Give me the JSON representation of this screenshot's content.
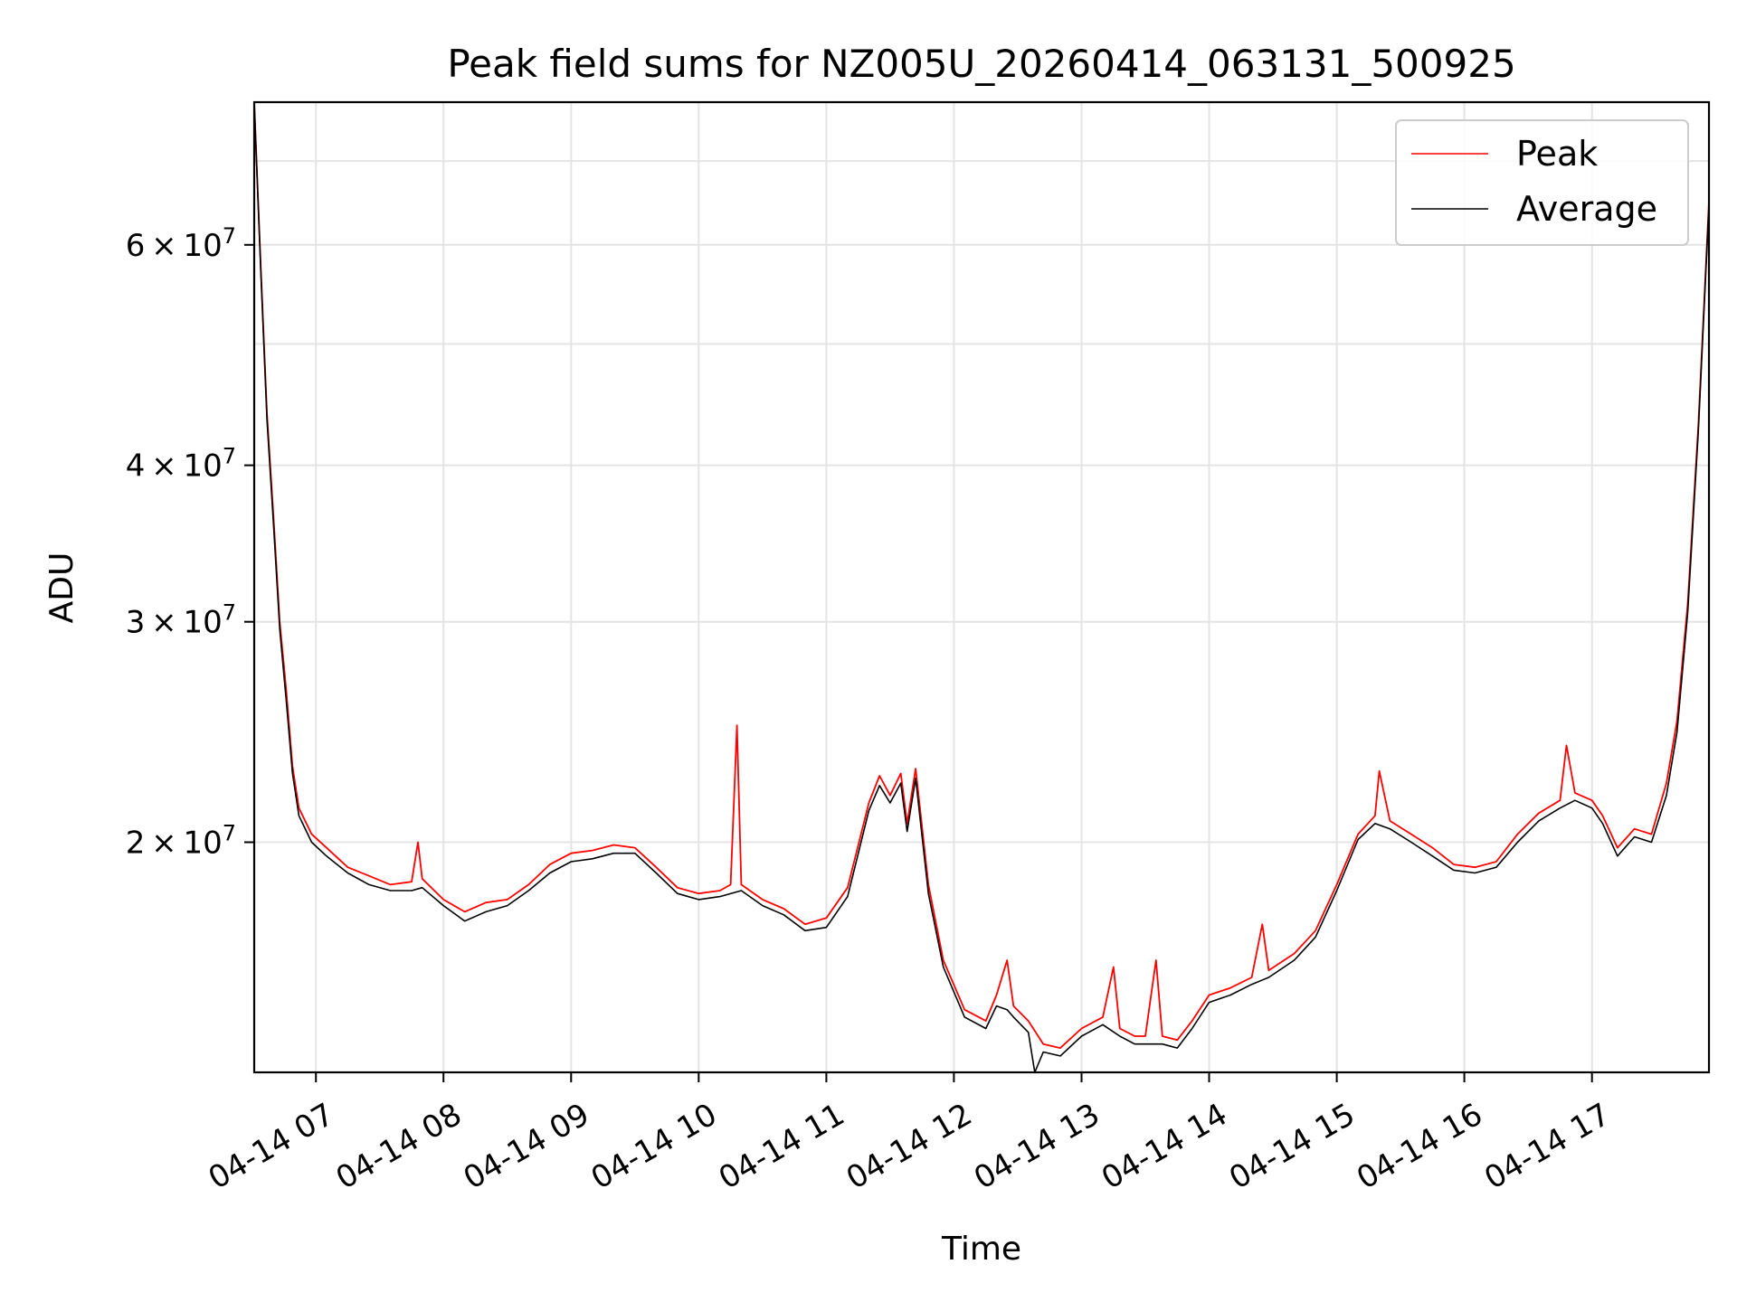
{
  "chart_data": {
    "type": "line",
    "title": "Peak field sums for NZ005U_20260414_063131_500925",
    "xlabel": "Time",
    "ylabel": "ADU",
    "yscale": "log",
    "ylim": [
      13100000,
      78000000
    ],
    "xlim": [
      "2026-04-14 06:31",
      "2026-04-14 17:55"
    ],
    "grid": true,
    "legend_position": "top-right",
    "x_ticks": [
      {
        "t": "2026-04-14 07:00",
        "label": "04-14 07"
      },
      {
        "t": "2026-04-14 08:00",
        "label": "04-14 08"
      },
      {
        "t": "2026-04-14 09:00",
        "label": "04-14 09"
      },
      {
        "t": "2026-04-14 10:00",
        "label": "04-14 10"
      },
      {
        "t": "2026-04-14 11:00",
        "label": "04-14 11"
      },
      {
        "t": "2026-04-14 12:00",
        "label": "04-14 12"
      },
      {
        "t": "2026-04-14 13:00",
        "label": "04-14 13"
      },
      {
        "t": "2026-04-14 14:00",
        "label": "04-14 14"
      },
      {
        "t": "2026-04-14 15:00",
        "label": "04-14 15"
      },
      {
        "t": "2026-04-14 16:00",
        "label": "04-14 16"
      },
      {
        "t": "2026-04-14 17:00",
        "label": "04-14 17"
      }
    ],
    "y_ticks_major": [
      {
        "value": 20000000,
        "mantissa": "2",
        "exponent": "7"
      },
      {
        "value": 30000000,
        "mantissa": "3",
        "exponent": "7"
      },
      {
        "value": 40000000,
        "mantissa": "4",
        "exponent": "7"
      },
      {
        "value": 60000000,
        "mantissa": "6",
        "exponent": "7"
      }
    ],
    "y_gridlines": [
      20000000,
      30000000,
      40000000,
      50000000,
      60000000,
      70000000
    ],
    "series": [
      {
        "name": "Peak",
        "color": "#ff0000",
        "points": [
          [
            "2026-04-14 06:31",
            78000000
          ],
          [
            "2026-04-14 06:34",
            58000000
          ],
          [
            "2026-04-14 06:37",
            44000000
          ],
          [
            "2026-04-14 06:40",
            36500000
          ],
          [
            "2026-04-14 06:43",
            30000000
          ],
          [
            "2026-04-14 06:46",
            26500000
          ],
          [
            "2026-04-14 06:49",
            23000000
          ],
          [
            "2026-04-14 06:52",
            21300000
          ],
          [
            "2026-04-14 06:58",
            20300000
          ],
          [
            "2026-04-14 07:05",
            19800000
          ],
          [
            "2026-04-14 07:15",
            19100000
          ],
          [
            "2026-04-14 07:25",
            18800000
          ],
          [
            "2026-04-14 07:35",
            18500000
          ],
          [
            "2026-04-14 07:45",
            18600000
          ],
          [
            "2026-04-14 07:48",
            20000000
          ],
          [
            "2026-04-14 07:50",
            18700000
          ],
          [
            "2026-04-14 08:00",
            18000000
          ],
          [
            "2026-04-14 08:10",
            17600000
          ],
          [
            "2026-04-14 08:20",
            17900000
          ],
          [
            "2026-04-14 08:30",
            18000000
          ],
          [
            "2026-04-14 08:40",
            18500000
          ],
          [
            "2026-04-14 08:50",
            19200000
          ],
          [
            "2026-04-14 09:00",
            19600000
          ],
          [
            "2026-04-14 09:10",
            19700000
          ],
          [
            "2026-04-14 09:20",
            19900000
          ],
          [
            "2026-04-14 09:30",
            19800000
          ],
          [
            "2026-04-14 09:40",
            19100000
          ],
          [
            "2026-04-14 09:50",
            18400000
          ],
          [
            "2026-04-14 10:00",
            18200000
          ],
          [
            "2026-04-14 10:10",
            18300000
          ],
          [
            "2026-04-14 10:15",
            18500000
          ],
          [
            "2026-04-14 10:18",
            24800000
          ],
          [
            "2026-04-14 10:20",
            18500000
          ],
          [
            "2026-04-14 10:30",
            18000000
          ],
          [
            "2026-04-14 10:40",
            17700000
          ],
          [
            "2026-04-14 10:50",
            17200000
          ],
          [
            "2026-04-14 11:00",
            17400000
          ],
          [
            "2026-04-14 11:10",
            18400000
          ],
          [
            "2026-04-14 11:20",
            21500000
          ],
          [
            "2026-04-14 11:25",
            22600000
          ],
          [
            "2026-04-14 11:30",
            21800000
          ],
          [
            "2026-04-14 11:35",
            22700000
          ],
          [
            "2026-04-14 11:38",
            20700000
          ],
          [
            "2026-04-14 11:42",
            22900000
          ],
          [
            "2026-04-14 11:48",
            18500000
          ],
          [
            "2026-04-14 11:55",
            16100000
          ],
          [
            "2026-04-14 12:05",
            14700000
          ],
          [
            "2026-04-14 12:15",
            14400000
          ],
          [
            "2026-04-14 12:20",
            15100000
          ],
          [
            "2026-04-14 12:25",
            16100000
          ],
          [
            "2026-04-14 12:28",
            14800000
          ],
          [
            "2026-04-14 12:35",
            14400000
          ],
          [
            "2026-04-14 12:42",
            13800000
          ],
          [
            "2026-04-14 12:50",
            13700000
          ],
          [
            "2026-04-14 13:00",
            14200000
          ],
          [
            "2026-04-14 13:10",
            14500000
          ],
          [
            "2026-04-14 13:15",
            15900000
          ],
          [
            "2026-04-14 13:18",
            14200000
          ],
          [
            "2026-04-14 13:25",
            14000000
          ],
          [
            "2026-04-14 13:30",
            14000000
          ],
          [
            "2026-04-14 13:35",
            16100000
          ],
          [
            "2026-04-14 13:38",
            14000000
          ],
          [
            "2026-04-14 13:45",
            13900000
          ],
          [
            "2026-04-14 13:52",
            14400000
          ],
          [
            "2026-04-14 14:00",
            15100000
          ],
          [
            "2026-04-14 14:10",
            15300000
          ],
          [
            "2026-04-14 14:20",
            15600000
          ],
          [
            "2026-04-14 14:25",
            17200000
          ],
          [
            "2026-04-14 14:28",
            15800000
          ],
          [
            "2026-04-14 14:40",
            16300000
          ],
          [
            "2026-04-14 14:50",
            17000000
          ],
          [
            "2026-04-14 15:00",
            18500000
          ],
          [
            "2026-04-14 15:10",
            20300000
          ],
          [
            "2026-04-14 15:18",
            21000000
          ],
          [
            "2026-04-14 15:20",
            22800000
          ],
          [
            "2026-04-14 15:25",
            20800000
          ],
          [
            "2026-04-14 15:35",
            20300000
          ],
          [
            "2026-04-14 15:45",
            19800000
          ],
          [
            "2026-04-14 15:55",
            19200000
          ],
          [
            "2026-04-14 16:05",
            19100000
          ],
          [
            "2026-04-14 16:15",
            19300000
          ],
          [
            "2026-04-14 16:25",
            20300000
          ],
          [
            "2026-04-14 16:35",
            21100000
          ],
          [
            "2026-04-14 16:45",
            21600000
          ],
          [
            "2026-04-14 16:48",
            23900000
          ],
          [
            "2026-04-14 16:52",
            21900000
          ],
          [
            "2026-04-14 17:00",
            21600000
          ],
          [
            "2026-04-14 17:05",
            21000000
          ],
          [
            "2026-04-14 17:12",
            19800000
          ],
          [
            "2026-04-14 17:20",
            20500000
          ],
          [
            "2026-04-14 17:28",
            20300000
          ],
          [
            "2026-04-14 17:35",
            22300000
          ],
          [
            "2026-04-14 17:40",
            25000000
          ],
          [
            "2026-04-14 17:45",
            31000000
          ],
          [
            "2026-04-14 17:50",
            43000000
          ],
          [
            "2026-04-14 17:55",
            65000000
          ]
        ]
      },
      {
        "name": "Average",
        "color": "#000000",
        "points": [
          [
            "2026-04-14 06:31",
            78000000
          ],
          [
            "2026-04-14 06:34",
            57500000
          ],
          [
            "2026-04-14 06:37",
            43500000
          ],
          [
            "2026-04-14 06:40",
            36000000
          ],
          [
            "2026-04-14 06:43",
            29600000
          ],
          [
            "2026-04-14 06:46",
            26000000
          ],
          [
            "2026-04-14 06:49",
            22700000
          ],
          [
            "2026-04-14 06:52",
            21000000
          ],
          [
            "2026-04-14 06:58",
            20000000
          ],
          [
            "2026-04-14 07:05",
            19500000
          ],
          [
            "2026-04-14 07:15",
            18900000
          ],
          [
            "2026-04-14 07:25",
            18500000
          ],
          [
            "2026-04-14 07:35",
            18300000
          ],
          [
            "2026-04-14 07:45",
            18300000
          ],
          [
            "2026-04-14 07:50",
            18400000
          ],
          [
            "2026-04-14 08:00",
            17800000
          ],
          [
            "2026-04-14 08:10",
            17300000
          ],
          [
            "2026-04-14 08:20",
            17600000
          ],
          [
            "2026-04-14 08:30",
            17800000
          ],
          [
            "2026-04-14 08:40",
            18300000
          ],
          [
            "2026-04-14 08:50",
            18900000
          ],
          [
            "2026-04-14 09:00",
            19300000
          ],
          [
            "2026-04-14 09:10",
            19400000
          ],
          [
            "2026-04-14 09:20",
            19600000
          ],
          [
            "2026-04-14 09:30",
            19600000
          ],
          [
            "2026-04-14 09:40",
            18900000
          ],
          [
            "2026-04-14 09:50",
            18200000
          ],
          [
            "2026-04-14 10:00",
            18000000
          ],
          [
            "2026-04-14 10:10",
            18100000
          ],
          [
            "2026-04-14 10:20",
            18300000
          ],
          [
            "2026-04-14 10:30",
            17800000
          ],
          [
            "2026-04-14 10:40",
            17500000
          ],
          [
            "2026-04-14 10:50",
            17000000
          ],
          [
            "2026-04-14 11:00",
            17100000
          ],
          [
            "2026-04-14 11:10",
            18100000
          ],
          [
            "2026-04-14 11:20",
            21200000
          ],
          [
            "2026-04-14 11:25",
            22200000
          ],
          [
            "2026-04-14 11:30",
            21500000
          ],
          [
            "2026-04-14 11:35",
            22300000
          ],
          [
            "2026-04-14 11:38",
            20400000
          ],
          [
            "2026-04-14 11:42",
            22500000
          ],
          [
            "2026-04-14 11:48",
            18200000
          ],
          [
            "2026-04-14 11:55",
            15900000
          ],
          [
            "2026-04-14 12:05",
            14500000
          ],
          [
            "2026-04-14 12:15",
            14200000
          ],
          [
            "2026-04-14 12:20",
            14800000
          ],
          [
            "2026-04-14 12:25",
            14700000
          ],
          [
            "2026-04-14 12:28",
            14500000
          ],
          [
            "2026-04-14 12:35",
            14100000
          ],
          [
            "2026-04-14 12:38",
            13100000
          ],
          [
            "2026-04-14 12:42",
            13600000
          ],
          [
            "2026-04-14 12:50",
            13500000
          ],
          [
            "2026-04-14 13:00",
            14000000
          ],
          [
            "2026-04-14 13:10",
            14300000
          ],
          [
            "2026-04-14 13:18",
            14000000
          ],
          [
            "2026-04-14 13:25",
            13800000
          ],
          [
            "2026-04-14 13:30",
            13800000
          ],
          [
            "2026-04-14 13:38",
            13800000
          ],
          [
            "2026-04-14 13:45",
            13700000
          ],
          [
            "2026-04-14 13:52",
            14200000
          ],
          [
            "2026-04-14 14:00",
            14900000
          ],
          [
            "2026-04-14 14:10",
            15100000
          ],
          [
            "2026-04-14 14:20",
            15400000
          ],
          [
            "2026-04-14 14:28",
            15600000
          ],
          [
            "2026-04-14 14:40",
            16100000
          ],
          [
            "2026-04-14 14:50",
            16800000
          ],
          [
            "2026-04-14 15:00",
            18300000
          ],
          [
            "2026-04-14 15:10",
            20100000
          ],
          [
            "2026-04-14 15:18",
            20700000
          ],
          [
            "2026-04-14 15:25",
            20500000
          ],
          [
            "2026-04-14 15:35",
            20000000
          ],
          [
            "2026-04-14 15:45",
            19500000
          ],
          [
            "2026-04-14 15:55",
            19000000
          ],
          [
            "2026-04-14 16:05",
            18900000
          ],
          [
            "2026-04-14 16:15",
            19100000
          ],
          [
            "2026-04-14 16:25",
            20000000
          ],
          [
            "2026-04-14 16:35",
            20800000
          ],
          [
            "2026-04-14 16:45",
            21300000
          ],
          [
            "2026-04-14 16:52",
            21600000
          ],
          [
            "2026-04-14 17:00",
            21300000
          ],
          [
            "2026-04-14 17:05",
            20700000
          ],
          [
            "2026-04-14 17:12",
            19500000
          ],
          [
            "2026-04-14 17:20",
            20200000
          ],
          [
            "2026-04-14 17:28",
            20000000
          ],
          [
            "2026-04-14 17:35",
            21800000
          ],
          [
            "2026-04-14 17:40",
            24500000
          ],
          [
            "2026-04-14 17:45",
            30500000
          ],
          [
            "2026-04-14 17:50",
            42500000
          ],
          [
            "2026-04-14 17:55",
            64500000
          ]
        ]
      }
    ]
  }
}
